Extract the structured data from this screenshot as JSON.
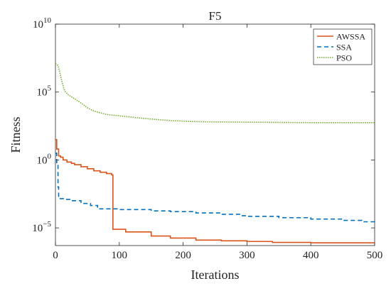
{
  "chart_data": {
    "type": "line",
    "title": "F5",
    "xlabel": "Iterations",
    "ylabel": "Fitness",
    "xlim": [
      0,
      500
    ],
    "ylim_log10": [
      -6.3,
      10
    ],
    "y_scale": "log",
    "grid": false,
    "legend_position": "top-right",
    "x_ticks": [
      "0",
      "100",
      "200",
      "300",
      "400",
      "500"
    ],
    "y_ticks": [
      {
        "base": "10",
        "exp": "10",
        "value_log10": 10
      },
      {
        "base": "10",
        "exp": "5",
        "value_log10": 5
      },
      {
        "base": "10",
        "exp": "0",
        "value_log10": 0
      },
      {
        "base": "10",
        "exp": "−5",
        "value_log10": -5
      }
    ],
    "series": [
      {
        "name": "AWSSA",
        "color": "#d95319",
        "style": "solid",
        "step": true,
        "points_log10": [
          [
            0,
            1.5
          ],
          [
            2,
            0.8
          ],
          [
            5,
            0.3
          ],
          [
            8,
            0.2
          ],
          [
            12,
            0.0
          ],
          [
            18,
            -0.15
          ],
          [
            25,
            -0.25
          ],
          [
            30,
            -0.35
          ],
          [
            40,
            -0.5
          ],
          [
            50,
            -0.65
          ],
          [
            60,
            -0.8
          ],
          [
            70,
            -0.9
          ],
          [
            80,
            -1.0
          ],
          [
            88,
            -1.1
          ],
          [
            90,
            -5.1
          ],
          [
            110,
            -5.3
          ],
          [
            150,
            -5.6
          ],
          [
            180,
            -5.75
          ],
          [
            220,
            -5.9
          ],
          [
            260,
            -5.95
          ],
          [
            300,
            -6.0
          ],
          [
            340,
            -6.07
          ],
          [
            400,
            -6.1
          ],
          [
            500,
            -6.1
          ]
        ]
      },
      {
        "name": "SSA",
        "color": "#0072bd",
        "style": "dashed",
        "step": true,
        "points_log10": [
          [
            0,
            0.5
          ],
          [
            2,
            -0.3
          ],
          [
            4,
            -2.0
          ],
          [
            5,
            -2.85
          ],
          [
            15,
            -2.9
          ],
          [
            25,
            -3.0
          ],
          [
            40,
            -3.2
          ],
          [
            55,
            -3.35
          ],
          [
            65,
            -3.35
          ],
          [
            66,
            -3.6
          ],
          [
            100,
            -3.65
          ],
          [
            150,
            -3.75
          ],
          [
            180,
            -3.8
          ],
          [
            220,
            -3.9
          ],
          [
            260,
            -4.0
          ],
          [
            290,
            -4.1
          ],
          [
            300,
            -4.15
          ],
          [
            350,
            -4.25
          ],
          [
            400,
            -4.35
          ],
          [
            450,
            -4.45
          ],
          [
            480,
            -4.55
          ],
          [
            500,
            -4.6
          ]
        ]
      },
      {
        "name": "PSO",
        "color": "#77ac30",
        "style": "dotted",
        "step": false,
        "points_log10": [
          [
            0,
            7.1
          ],
          [
            3,
            7.0
          ],
          [
            5,
            6.8
          ],
          [
            8,
            6.2
          ],
          [
            10,
            5.8
          ],
          [
            13,
            5.3
          ],
          [
            15,
            5.05
          ],
          [
            20,
            4.8
          ],
          [
            30,
            4.5
          ],
          [
            40,
            4.2
          ],
          [
            50,
            3.85
          ],
          [
            60,
            3.6
          ],
          [
            80,
            3.35
          ],
          [
            90,
            3.3
          ],
          [
            100,
            3.25
          ],
          [
            140,
            3.05
          ],
          [
            180,
            2.9
          ],
          [
            220,
            2.82
          ],
          [
            300,
            2.78
          ],
          [
            400,
            2.75
          ],
          [
            500,
            2.75
          ]
        ]
      }
    ]
  }
}
